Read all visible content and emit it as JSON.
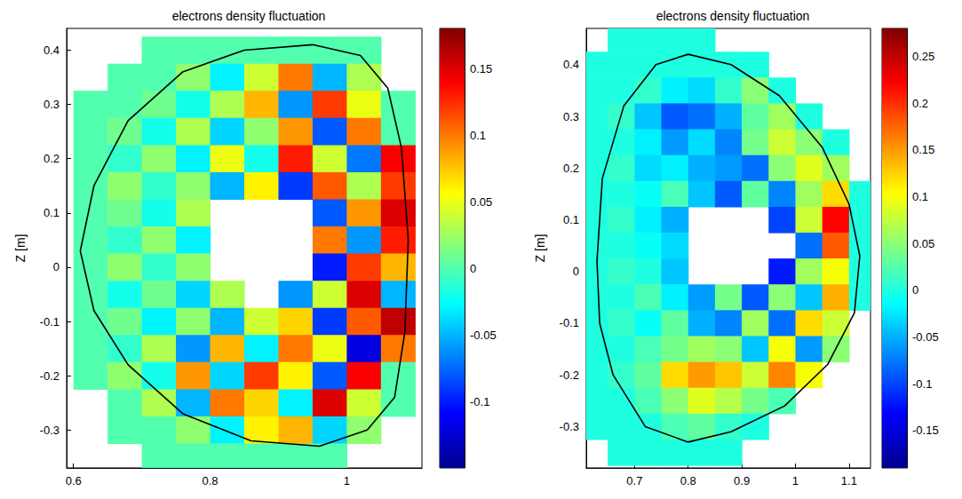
{
  "chart_data": [
    {
      "type": "heatmap",
      "title": "electrons density fluctuation",
      "y_label": "Z [m]",
      "xlim": [
        0.59,
        1.11
      ],
      "xticks": [
        0.6,
        0.8,
        1
      ],
      "ylim": [
        -0.37,
        0.44
      ],
      "yticks": [
        -0.3,
        -0.2,
        -0.1,
        0,
        0.1,
        0.2,
        0.3,
        0.4
      ],
      "cells": {
        "x": [
          0.625,
          0.675,
          0.725,
          0.775,
          0.825,
          0.875,
          0.925,
          0.975,
          1.025,
          1.075
        ],
        "z": [
          0.4,
          0.35,
          0.3,
          0.25,
          0.2,
          0.15,
          0.1,
          0.05,
          0.0,
          -0.05,
          -0.1,
          -0.15,
          -0.2,
          -0.25,
          -0.3,
          -0.35
        ],
        "values": [
          [
            null,
            null,
            0,
            0,
            0,
            0,
            0,
            0,
            0,
            null
          ],
          [
            null,
            0,
            0,
            0.02,
            -0.03,
            0.04,
            0.1,
            -0.05,
            0.03,
            null
          ],
          [
            0,
            0,
            0.01,
            -0.02,
            0.03,
            0.08,
            -0.06,
            0.12,
            0.05,
            0
          ],
          [
            0,
            0.01,
            -0.02,
            0.03,
            -0.04,
            0.02,
            0.09,
            -0.08,
            0.1,
            0
          ],
          [
            0,
            -0.01,
            0.02,
            -0.03,
            0.05,
            -0.02,
            0.13,
            0.04,
            -0.07,
            0.14
          ],
          [
            0,
            0.02,
            -0.01,
            0.02,
            -0.05,
            0.06,
            -0.09,
            0.11,
            0.03,
            0.12
          ],
          [
            0,
            0.01,
            -0.02,
            0.03,
            null,
            null,
            null,
            -0.08,
            0.09,
            0.15
          ],
          [
            0,
            -0.01,
            0.02,
            -0.03,
            null,
            null,
            null,
            0.1,
            -0.06,
            0.13
          ],
          [
            0,
            0.02,
            -0.01,
            0.02,
            null,
            null,
            null,
            -0.1,
            0.12,
            0.08
          ],
          [
            0,
            -0.02,
            0.01,
            -0.04,
            0.03,
            null,
            -0.06,
            0.04,
            0.15,
            -0.05
          ],
          [
            0,
            0.01,
            -0.03,
            0.02,
            -0.05,
            0.04,
            0.07,
            -0.09,
            0.11,
            0.16
          ],
          [
            0,
            -0.01,
            0.03,
            -0.06,
            0.08,
            -0.03,
            0.1,
            0.05,
            -0.12,
            0.1
          ],
          [
            0,
            0.02,
            -0.02,
            0.09,
            -0.04,
            0.12,
            0.06,
            -0.08,
            0.14,
            0
          ],
          [
            null,
            0,
            0.03,
            -0.05,
            0.1,
            0.07,
            -0.03,
            0.15,
            0.04,
            0
          ],
          [
            null,
            0,
            0,
            0.02,
            -0.03,
            0.06,
            0.08,
            -0.04,
            0.02,
            null
          ],
          [
            null,
            null,
            0,
            0,
            0,
            0,
            0,
            0,
            null,
            null
          ]
        ]
      },
      "colorbar": {
        "lim": [
          -0.15,
          0.18
        ],
        "ticks": [
          -0.1,
          -0.05,
          0,
          0.05,
          0.1,
          0.15
        ]
      },
      "boundary": {
        "color": "#000000",
        "x": [
          0.61,
          0.63,
          0.68,
          0.76,
          0.85,
          0.95,
          1.02,
          1.06,
          1.08,
          1.09,
          1.085,
          1.07,
          1.03,
          0.96,
          0.86,
          0.76,
          0.68,
          0.63,
          0.61
        ],
        "z": [
          0.03,
          0.15,
          0.27,
          0.36,
          0.4,
          0.41,
          0.39,
          0.33,
          0.22,
          0.05,
          -0.12,
          -0.24,
          -0.3,
          -0.33,
          -0.32,
          -0.27,
          -0.18,
          -0.08,
          0.03
        ]
      }
    },
    {
      "type": "heatmap",
      "title": "electrons density fluctuation",
      "y_label": "Z [m]",
      "xlim": [
        0.61,
        1.14
      ],
      "xticks": [
        0.7,
        0.8,
        0.9,
        1,
        1.1
      ],
      "ylim": [
        -0.38,
        0.47
      ],
      "yticks": [
        -0.3,
        -0.2,
        -0.1,
        0,
        0.1,
        0.2,
        0.3,
        0.4
      ],
      "cells": {
        "x": [
          0.625,
          0.675,
          0.725,
          0.775,
          0.825,
          0.875,
          0.925,
          0.975,
          1.025,
          1.075,
          1.125
        ],
        "z": [
          0.45,
          0.4,
          0.35,
          0.3,
          0.25,
          0.2,
          0.15,
          0.1,
          0.05,
          0.0,
          -0.05,
          -0.1,
          -0.15,
          -0.2,
          -0.25,
          -0.3,
          -0.35
        ],
        "values": [
          [
            null,
            0,
            0,
            0,
            0,
            null,
            null,
            null,
            null,
            null,
            null
          ],
          [
            0,
            0,
            0,
            0,
            0,
            0,
            0,
            null,
            null,
            null,
            null
          ],
          [
            0,
            0,
            0.01,
            -0.02,
            -0.03,
            0.01,
            0.05,
            0,
            null,
            null,
            null
          ],
          [
            0,
            0.01,
            -0.04,
            -0.09,
            -0.08,
            -0.05,
            0.03,
            0.06,
            0,
            null,
            null
          ],
          [
            0,
            0,
            -0.02,
            -0.06,
            -0.03,
            -0.07,
            0.04,
            0.08,
            0.05,
            0,
            null
          ],
          [
            0,
            0.01,
            -0.03,
            -0.02,
            -0.05,
            -0.06,
            -0.08,
            0.05,
            0.09,
            0.06,
            null
          ],
          [
            0,
            0,
            -0.01,
            0.02,
            -0.04,
            -0.09,
            0.03,
            -0.07,
            0.06,
            0.12,
            0
          ],
          [
            0,
            0.01,
            -0.02,
            -0.05,
            null,
            null,
            null,
            -0.1,
            0.08,
            0.22,
            0
          ],
          [
            0,
            0,
            -0.01,
            -0.03,
            null,
            null,
            null,
            null,
            -0.08,
            0.18,
            0
          ],
          [
            0,
            0.01,
            0,
            -0.04,
            null,
            null,
            null,
            -0.12,
            0.06,
            0.1,
            0
          ],
          [
            0,
            0,
            0.02,
            -0.02,
            -0.06,
            0.04,
            -0.09,
            0.05,
            -0.04,
            0.14,
            0
          ],
          [
            0,
            0.01,
            -0.01,
            0.03,
            -0.05,
            -0.07,
            0.06,
            -0.08,
            0.12,
            0.08,
            null
          ],
          [
            0,
            0,
            0.02,
            0.04,
            0.06,
            0.05,
            -0.04,
            0.1,
            -0.06,
            0.05,
            null
          ],
          [
            0,
            0.01,
            0.03,
            0.12,
            0.15,
            0.13,
            0.08,
            0.16,
            0.1,
            null,
            null
          ],
          [
            0,
            0,
            0.02,
            0.05,
            0.09,
            0.07,
            0.04,
            0.02,
            null,
            null,
            null
          ],
          [
            0,
            0,
            0,
            0.02,
            0.03,
            0.01,
            0,
            null,
            null,
            null,
            null
          ],
          [
            null,
            0,
            0,
            0,
            0,
            0,
            null,
            null,
            null,
            null,
            null
          ]
        ]
      },
      "colorbar": {
        "lim": [
          -0.19,
          0.28
        ],
        "ticks": [
          -0.15,
          -0.1,
          -0.05,
          0,
          0.05,
          0.1,
          0.15,
          0.2,
          0.25
        ]
      },
      "boundary": {
        "color": "#000000",
        "x": [
          0.63,
          0.64,
          0.68,
          0.74,
          0.8,
          0.88,
          0.97,
          1.05,
          1.1,
          1.12,
          1.11,
          1.06,
          0.98,
          0.88,
          0.8,
          0.72,
          0.66,
          0.635,
          0.63
        ],
        "z": [
          0.02,
          0.18,
          0.32,
          0.4,
          0.42,
          0.4,
          0.34,
          0.24,
          0.13,
          0.03,
          -0.08,
          -0.18,
          -0.26,
          -0.31,
          -0.33,
          -0.3,
          -0.2,
          -0.1,
          0.02
        ]
      }
    }
  ]
}
